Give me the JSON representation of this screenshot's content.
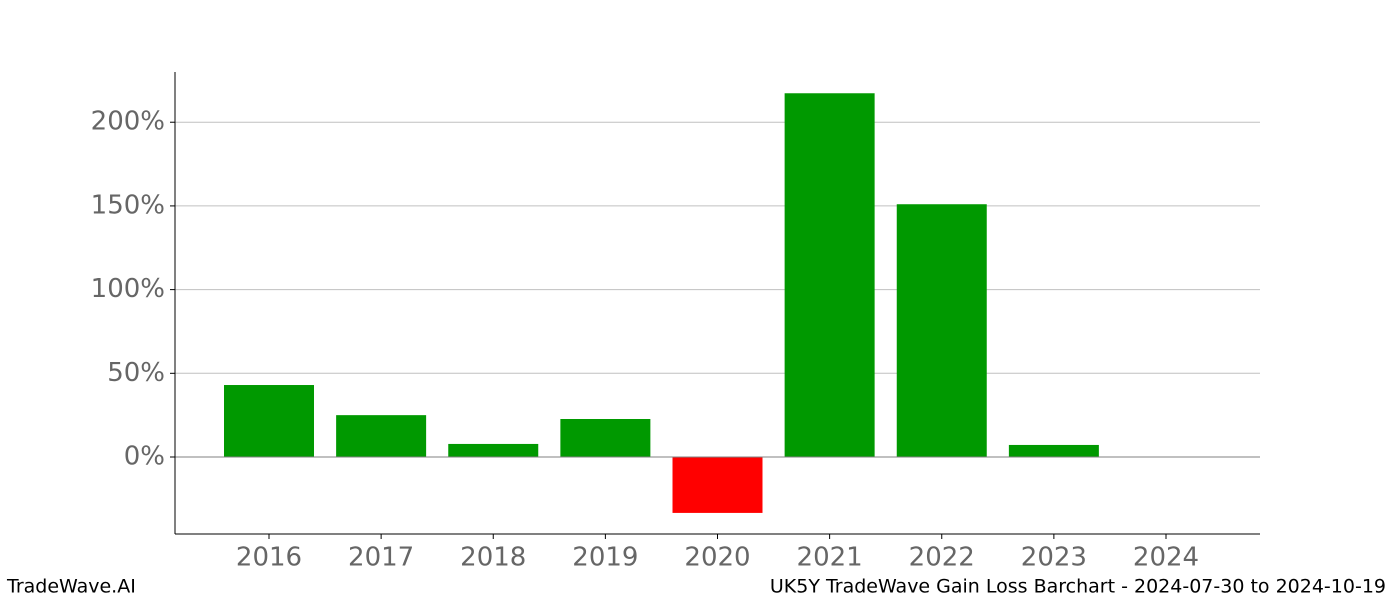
{
  "chart_data": {
    "type": "bar",
    "title": "UK5Y TradeWave Gain Loss Barchart - 2024-07-30 to 2024-10-19",
    "watermark": "TradeWave.AI",
    "categories": [
      "2016",
      "2017",
      "2018",
      "2019",
      "2020",
      "2021",
      "2022",
      "2023",
      "2024"
    ],
    "values": [
      43,
      25,
      7.8,
      22.7,
      -33.4,
      217.3,
      151,
      7.2,
      0
    ],
    "colors": [
      "#009900",
      "#009900",
      "#009900",
      "#009900",
      "#ff0000",
      "#009900",
      "#009900",
      "#009900",
      "#009900"
    ],
    "ylim": [
      -46,
      230
    ],
    "yticks": [
      {
        "value": 0,
        "label": "0%"
      },
      {
        "value": 50,
        "label": "50%"
      },
      {
        "value": 100,
        "label": "100%"
      },
      {
        "value": 150,
        "label": "150%"
      },
      {
        "value": 200,
        "label": "200%"
      }
    ],
    "grid": true
  }
}
